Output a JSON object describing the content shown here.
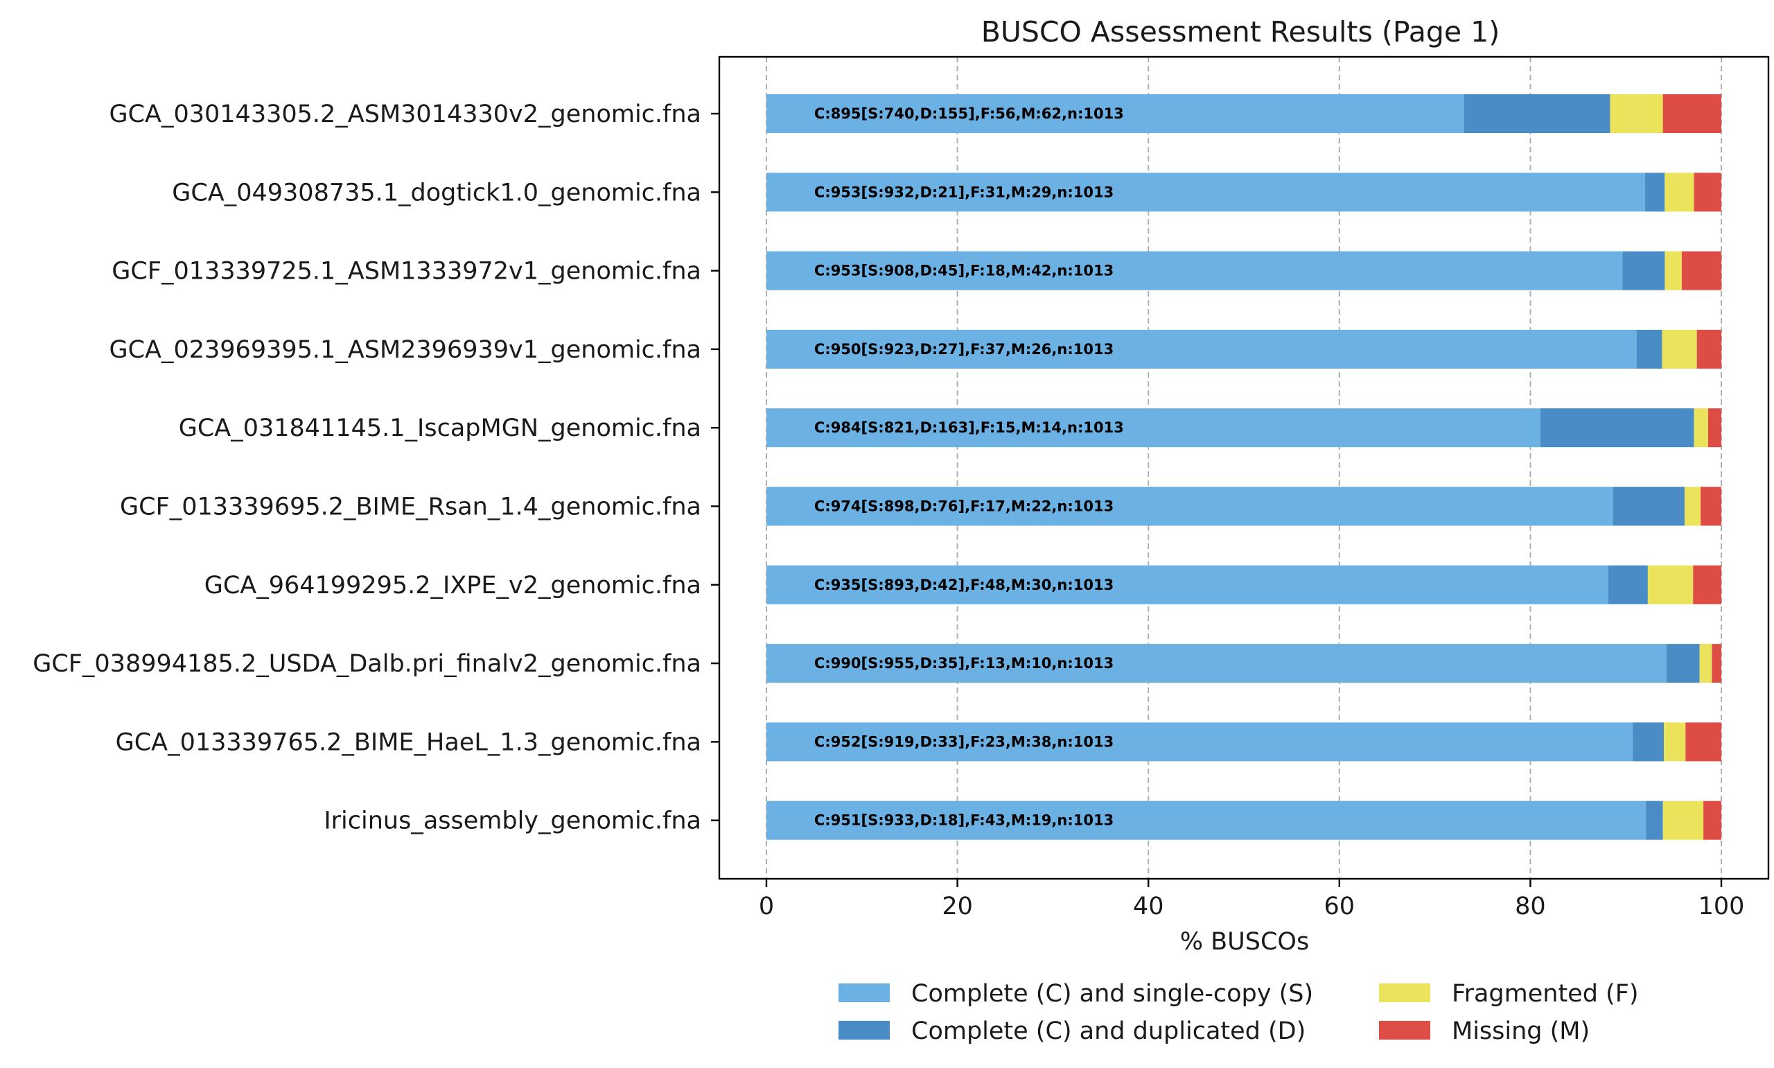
{
  "chart_data": {
    "type": "bar",
    "orientation": "horizontal",
    "stacked": true,
    "title": "BUSCO Assessment Results (Page 1)",
    "xlabel": "% BUSCOs",
    "ylabel": "",
    "xlim": [
      -5,
      105
    ],
    "xticks": [
      0,
      20,
      40,
      60,
      80,
      100
    ],
    "grid": "x-dashed",
    "legend_position": "bottom",
    "categories": [
      "GCA_030143305.2_ASM3014330v2_genomic.fna",
      "GCA_049308735.1_dogtick1.0_genomic.fna",
      "GCF_013339725.1_ASM1333972v1_genomic.fna",
      "GCA_023969395.1_ASM2396939v1_genomic.fna",
      "GCA_031841145.1_IscapMGN_genomic.fna",
      "GCF_013339695.2_BIME_Rsan_1.4_genomic.fna",
      "GCA_964199295.2_IXPE_v2_genomic.fna",
      "GCF_038994185.2_USDA_Dalb.pri_finalv2_genomic.fna",
      "GCA_013339765.2_BIME_HaeL_1.3_genomic.fna",
      "Iricinus_assembly_genomic.fna"
    ],
    "series": [
      {
        "name": "Complete (C) and single-copy (S)",
        "color": "#6cb1e3",
        "values": [
          73.05,
          92.0,
          89.64,
          91.12,
          81.05,
          88.65,
          88.15,
          94.27,
          90.72,
          92.1
        ]
      },
      {
        "name": "Complete (C) and duplicated (D)",
        "color": "#4a8cc5",
        "values": [
          15.3,
          2.07,
          4.44,
          2.67,
          16.09,
          7.5,
          4.15,
          3.46,
          3.26,
          1.78
        ]
      },
      {
        "name": "Fragmented (F)",
        "color": "#ece35c",
        "values": [
          5.53,
          3.06,
          1.78,
          3.65,
          1.48,
          1.68,
          4.74,
          1.28,
          2.27,
          4.24
        ]
      },
      {
        "name": "Missing (M)",
        "color": "#de4d45",
        "values": [
          6.12,
          2.86,
          4.15,
          2.57,
          1.38,
          2.17,
          2.96,
          0.99,
          3.75,
          1.88
        ]
      }
    ],
    "bar_labels": [
      "C:895[S:740,D:155],F:56,M:62,n:1013",
      "C:953[S:932,D:21],F:31,M:29,n:1013",
      "C:953[S:908,D:45],F:18,M:42,n:1013",
      "C:950[S:923,D:27],F:37,M:26,n:1013",
      "C:984[S:821,D:163],F:15,M:14,n:1013",
      "C:974[S:898,D:76],F:17,M:22,n:1013",
      "C:935[S:893,D:42],F:48,M:30,n:1013",
      "C:990[S:955,D:35],F:13,M:10,n:1013",
      "C:952[S:919,D:33],F:23,M:38,n:1013",
      "C:951[S:933,D:18],F:43,M:19,n:1013"
    ]
  }
}
